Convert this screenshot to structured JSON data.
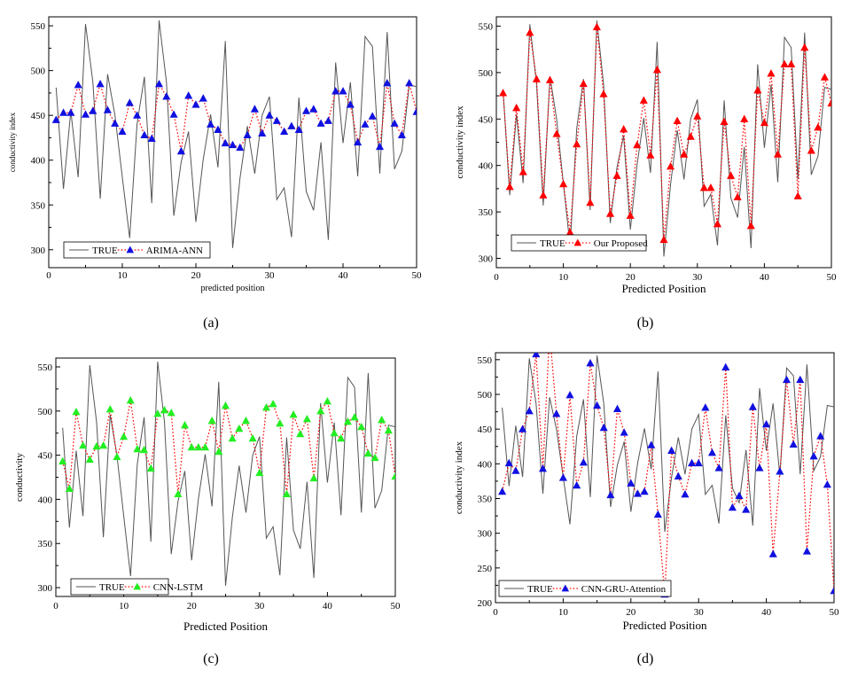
{
  "figure": {
    "panels": [
      "(a)",
      "(b)",
      "(c)",
      "(d)"
    ]
  },
  "true_series": [
    481,
    368,
    455,
    381,
    552,
    487,
    357,
    496,
    450,
    381,
    313,
    440,
    493,
    352,
    556,
    487,
    338,
    398,
    432,
    331,
    401,
    451,
    392,
    533,
    302,
    380,
    438,
    385,
    450,
    471,
    356,
    369,
    314,
    470,
    365,
    344,
    420,
    311,
    509,
    419,
    487,
    382,
    538,
    527,
    385,
    543,
    390,
    410,
    484,
    482
  ],
  "chart_data": [
    {
      "type": "line",
      "panel": "(a)",
      "xlabel": "predicted position",
      "ylabel": "conductivity index",
      "xlim": [
        0,
        50
      ],
      "ylim": [
        280,
        560
      ],
      "xticks": [
        0,
        10,
        20,
        30,
        40,
        50
      ],
      "yticks": [
        300,
        350,
        400,
        450,
        500,
        550
      ],
      "legend_position": "bottom-left",
      "series": [
        {
          "name": "TRUE",
          "style": "solid",
          "color": "#555555",
          "ref": "true_series"
        },
        {
          "name": "ARIMA-ANN",
          "style": "dotted",
          "color": "#ff0000",
          "marker": "triangle",
          "marker_color": "#1010e0",
          "values": [
            445,
            453,
            453,
            484,
            451,
            455,
            485,
            456,
            441,
            432,
            464,
            450,
            428,
            424,
            485,
            471,
            451,
            410,
            472,
            462,
            469,
            440,
            434,
            419,
            417,
            414,
            428,
            457,
            430,
            450,
            444,
            432,
            438,
            434,
            455,
            457,
            441,
            444,
            477,
            477,
            462,
            420,
            440,
            449,
            415,
            486,
            441,
            428,
            486,
            454
          ]
        }
      ]
    },
    {
      "type": "line",
      "panel": "(b)",
      "xlabel": "Predicted Position",
      "ylabel": "conductivity index",
      "xlim": [
        0,
        50
      ],
      "ylim": [
        290,
        560
      ],
      "xticks": [
        0,
        10,
        20,
        30,
        40,
        50
      ],
      "yticks": [
        300,
        350,
        400,
        450,
        500,
        550
      ],
      "legend_position": "bottom-left",
      "series": [
        {
          "name": "TRUE",
          "style": "solid",
          "color": "#555555",
          "ref": "true_series"
        },
        {
          "name": "Our Proposed",
          "style": "dotted",
          "color": "#ff0000",
          "marker": "triangle",
          "marker_color": "#ff0000",
          "values": [
            478,
            377,
            462,
            393,
            543,
            493,
            368,
            492,
            434,
            380,
            328,
            423,
            488,
            360,
            549,
            477,
            348,
            389,
            439,
            346,
            422,
            470,
            411,
            503,
            320,
            399,
            448,
            412,
            431,
            453,
            376,
            376,
            337,
            447,
            389,
            366,
            450,
            335,
            481,
            446,
            499,
            412,
            509,
            509,
            367,
            527,
            416,
            441,
            495,
            467
          ]
        }
      ]
    },
    {
      "type": "line",
      "panel": "(c)",
      "xlabel": "Predicted Position",
      "ylabel": "conductivity",
      "xlim": [
        0,
        50
      ],
      "ylim": [
        290,
        560
      ],
      "xticks": [
        0,
        10,
        20,
        30,
        40,
        50
      ],
      "yticks": [
        300,
        350,
        400,
        450,
        500,
        550
      ],
      "legend_position": "bottom-left",
      "series": [
        {
          "name": "TRUE",
          "style": "solid",
          "color": "#555555",
          "ref": "true_series"
        },
        {
          "name": "CNN-LSTM",
          "style": "dotted",
          "color": "#ff0000",
          "marker": "triangle",
          "marker_color": "#22ee22",
          "values": [
            443,
            412,
            499,
            461,
            445,
            460,
            461,
            502,
            448,
            471,
            512,
            457,
            456,
            435,
            497,
            501,
            498,
            406,
            484,
            459,
            459,
            459,
            489,
            454,
            506,
            469,
            480,
            489,
            469,
            430,
            504,
            508,
            486,
            406,
            496,
            474,
            491,
            424,
            500,
            511,
            475,
            469,
            488,
            493,
            482,
            452,
            447,
            490,
            478,
            426
          ]
        }
      ]
    },
    {
      "type": "line",
      "panel": "(d)",
      "xlabel": "Predicted Position",
      "ylabel": "conductivity index",
      "xlim": [
        0,
        50
      ],
      "ylim": [
        200,
        560
      ],
      "xticks": [
        0,
        10,
        20,
        30,
        40,
        50
      ],
      "yticks": [
        200,
        250,
        300,
        350,
        400,
        450,
        500,
        550
      ],
      "legend_position": "bottom-left",
      "series": [
        {
          "name": "TRUE",
          "style": "solid",
          "color": "#555555",
          "ref": "true_series"
        },
        {
          "name": "CNN-GRU-Attention",
          "style": "dotted",
          "color": "#ff0000",
          "marker": "triangle",
          "marker_color": "#1010e0",
          "values": [
            360,
            401,
            390,
            450,
            476,
            558,
            393,
            590,
            472,
            380,
            499,
            369,
            402,
            545,
            484,
            452,
            355,
            479,
            445,
            372,
            357,
            360,
            427,
            327,
            212,
            419,
            382,
            356,
            401,
            401,
            481,
            416,
            394,
            539,
            337,
            354,
            334,
            482,
            394,
            457,
            270,
            389,
            521,
            428,
            521,
            274,
            411,
            440,
            370,
            217
          ]
        }
      ]
    }
  ]
}
